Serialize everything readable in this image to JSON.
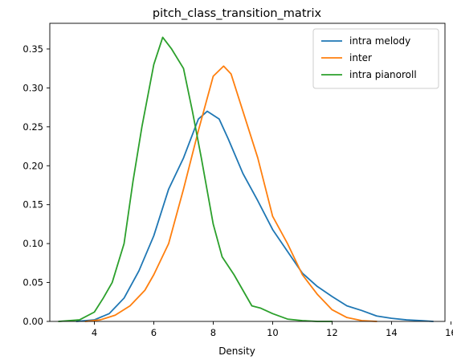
{
  "chart_data": {
    "type": "line",
    "title": "pitch_class_transition_matrix",
    "xlabel": "Density",
    "ylabel": "",
    "xlim": [
      2.5,
      15.8
    ],
    "ylim": [
      0,
      0.383
    ],
    "xticks": [
      4,
      6,
      8,
      10,
      12,
      14,
      16
    ],
    "yticks": [
      0.0,
      0.05,
      0.1,
      0.15,
      0.2,
      0.25,
      0.3,
      0.35
    ],
    "ytick_labels": [
      "0.00",
      "0.05",
      "0.10",
      "0.15",
      "0.20",
      "0.25",
      "0.30",
      "0.35"
    ],
    "grid": false,
    "legend": "top-right",
    "series": [
      {
        "name": "intra melody",
        "color": "#1f77b4",
        "x": [
          3.4,
          4.0,
          4.5,
          5.0,
          5.5,
          6.0,
          6.5,
          7.0,
          7.5,
          7.8,
          8.2,
          8.5,
          9.0,
          9.5,
          10.0,
          10.5,
          11.0,
          11.5,
          12.0,
          12.5,
          13.0,
          13.5,
          14.0,
          14.5,
          15.0,
          15.4
        ],
        "y": [
          0.0,
          0.002,
          0.01,
          0.03,
          0.065,
          0.11,
          0.17,
          0.21,
          0.26,
          0.27,
          0.26,
          0.235,
          0.19,
          0.155,
          0.118,
          0.09,
          0.062,
          0.045,
          0.032,
          0.02,
          0.014,
          0.007,
          0.004,
          0.002,
          0.001,
          0.0
        ]
      },
      {
        "name": "inter",
        "color": "#ff7f0e",
        "x": [
          3.7,
          4.2,
          4.7,
          5.2,
          5.7,
          6.0,
          6.5,
          7.0,
          7.5,
          8.0,
          8.35,
          8.6,
          9.0,
          9.5,
          10.0,
          10.5,
          11.0,
          11.5,
          12.0,
          12.5,
          13.0,
          13.5
        ],
        "y": [
          0.0,
          0.002,
          0.008,
          0.02,
          0.04,
          0.06,
          0.1,
          0.17,
          0.245,
          0.315,
          0.328,
          0.318,
          0.27,
          0.21,
          0.135,
          0.1,
          0.06,
          0.035,
          0.015,
          0.005,
          0.001,
          0.0
        ]
      },
      {
        "name": "intra pianoroll",
        "color": "#2ca02c",
        "x": [
          2.8,
          3.5,
          4.0,
          4.3,
          4.6,
          5.0,
          5.3,
          5.6,
          6.0,
          6.3,
          6.6,
          7.0,
          7.3,
          7.6,
          8.0,
          8.3,
          8.7,
          9.0,
          9.3,
          9.6,
          10.0,
          10.5,
          11.0,
          11.5,
          12.0
        ],
        "y": [
          0.0,
          0.002,
          0.012,
          0.03,
          0.05,
          0.1,
          0.18,
          0.25,
          0.33,
          0.365,
          0.35,
          0.325,
          0.27,
          0.21,
          0.125,
          0.083,
          0.06,
          0.04,
          0.02,
          0.017,
          0.01,
          0.003,
          0.001,
          0.0,
          0.0
        ]
      }
    ]
  }
}
